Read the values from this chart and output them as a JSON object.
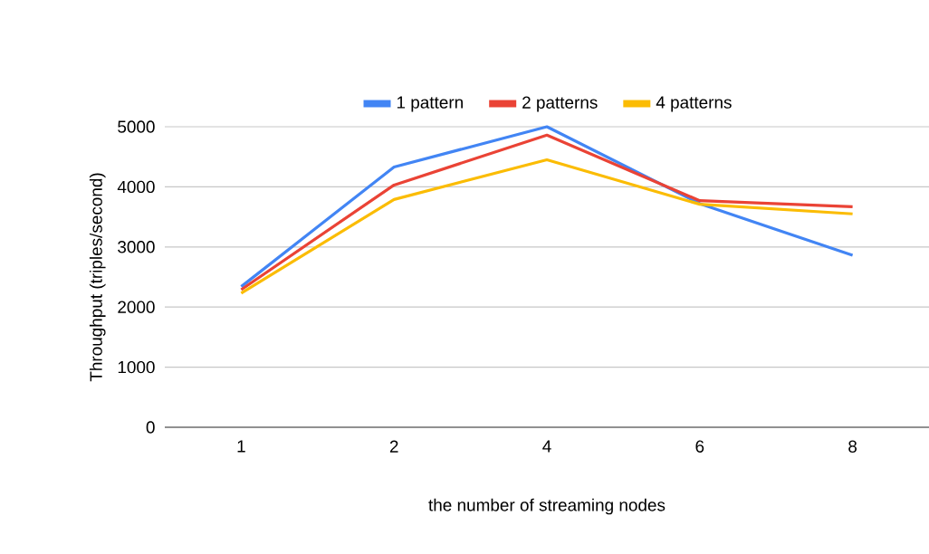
{
  "chart_data": {
    "type": "line",
    "xlabel": "the number of streaming nodes",
    "ylabel": "Throughput (triples/second)",
    "categories": [
      "1",
      "2",
      "4",
      "6",
      "8"
    ],
    "series": [
      {
        "name": "1 pattern",
        "color": "#4285f4",
        "values": [
          2340,
          4330,
          5000,
          3720,
          2860
        ]
      },
      {
        "name": "2 patterns",
        "color": "#ea4335",
        "values": [
          2290,
          4030,
          4860,
          3770,
          3670
        ]
      },
      {
        "name": "4 patterns",
        "color": "#fbbc04",
        "values": [
          2230,
          3790,
          4450,
          3710,
          3550
        ]
      }
    ],
    "ylim": [
      0,
      5000
    ],
    "yticks": [
      0,
      1000,
      2000,
      3000,
      4000,
      5000
    ],
    "grid": "y",
    "legend": "top",
    "marker": "none",
    "line_style": "solid"
  }
}
